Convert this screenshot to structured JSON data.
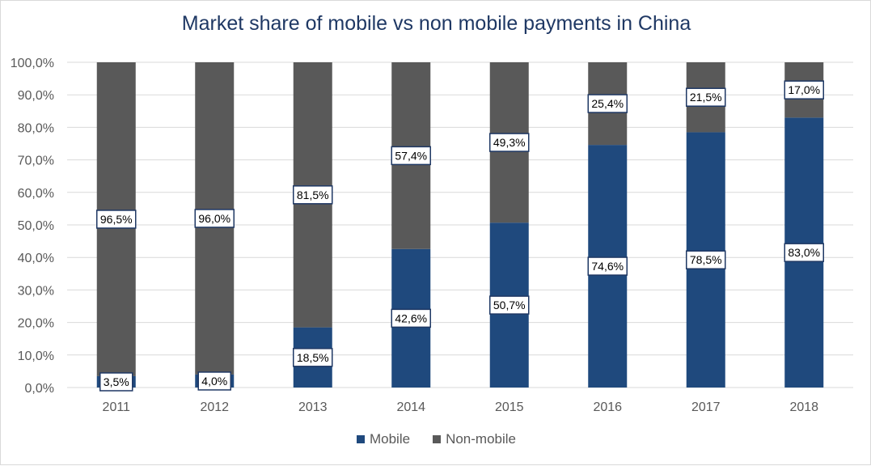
{
  "chart_data": {
    "type": "bar",
    "stacked": true,
    "title": "Market share of mobile vs non mobile payments in China",
    "categories": [
      "2011",
      "2012",
      "2013",
      "2014",
      "2015",
      "2016",
      "2017",
      "2018"
    ],
    "series": [
      {
        "name": "Mobile",
        "color": "#1f497d",
        "values": [
          3.5,
          4.0,
          18.5,
          42.6,
          50.7,
          74.6,
          78.5,
          83.0
        ],
        "labels": [
          "3,5%",
          "4,0%",
          "18,5%",
          "42,6%",
          "50,7%",
          "74,6%",
          "78,5%",
          "83,0%"
        ]
      },
      {
        "name": "Non-mobile",
        "color": "#595959",
        "values": [
          96.5,
          96.0,
          81.5,
          57.4,
          49.3,
          25.4,
          21.5,
          17.0
        ],
        "labels": [
          "96,5%",
          "96,0%",
          "81,5%",
          "57,4%",
          "49,3%",
          "25,4%",
          "21,5%",
          "17,0%"
        ]
      }
    ],
    "ylim": [
      0,
      100
    ],
    "yticks": [
      "0,0%",
      "10,0%",
      "20,0%",
      "30,0%",
      "40,0%",
      "50,0%",
      "60,0%",
      "70,0%",
      "80,0%",
      "90,0%",
      "100,0%"
    ],
    "grid": true,
    "legend": "bottom"
  }
}
